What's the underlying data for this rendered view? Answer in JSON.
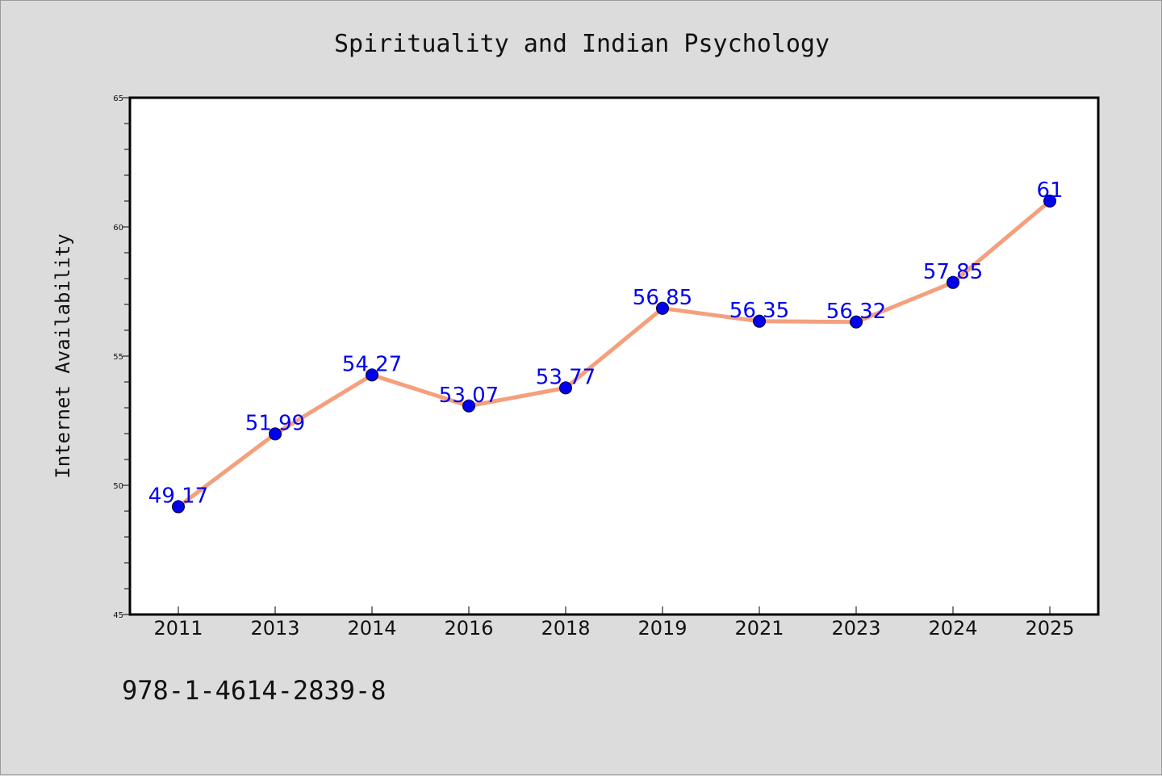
{
  "chart_data": {
    "type": "line",
    "title": "Spirituality and Indian Psychology",
    "xlabel": "",
    "ylabel": "Internet Availability",
    "categories": [
      "2011",
      "2013",
      "2014",
      "2016",
      "2018",
      "2019",
      "2021",
      "2023",
      "2024",
      "2025"
    ],
    "series": [
      {
        "values": [
          49.17,
          51.99,
          54.27,
          53.07,
          53.77,
          56.85,
          56.35,
          56.32,
          57.85,
          61
        ],
        "labels": [
          "49.17",
          "51.99",
          "54.27",
          "53.07",
          "53.77",
          "56.85",
          "56.35",
          "56.32",
          "57.85",
          "61"
        ]
      }
    ],
    "ylim": [
      45,
      65
    ],
    "yticks": [
      "45",
      "50",
      "55",
      "60",
      "65"
    ],
    "grid": false,
    "legend": "none",
    "colors": {
      "line": "#f4a07c",
      "marker": "#0000ee",
      "label": "#0000ee",
      "plot_bg": "#ffffff",
      "page_bg": "#dcdcdc"
    }
  },
  "footer": {
    "text": "978-1-4614-2839-8"
  }
}
